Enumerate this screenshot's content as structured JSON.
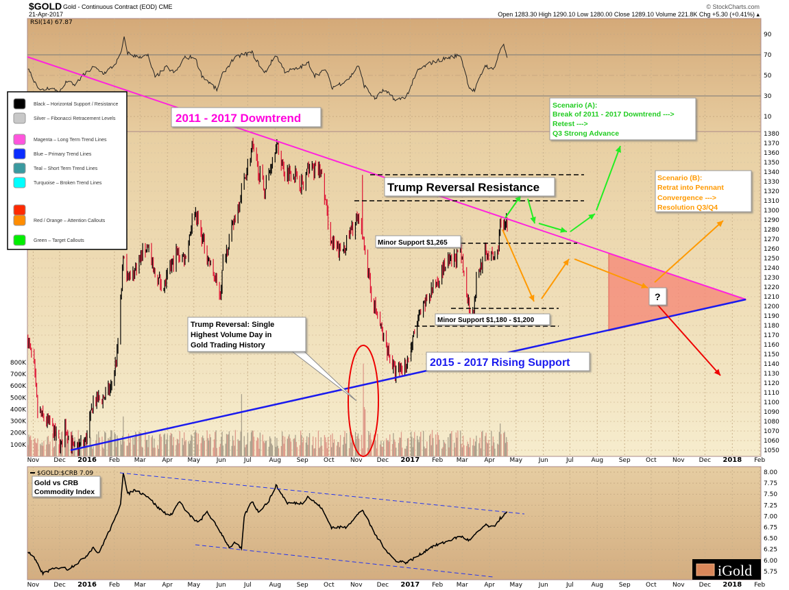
{
  "header": {
    "symbol": "$GOLD",
    "name": "Gold - Continuous Contract (EOD) CME",
    "date": "21-Apr-2017",
    "credit": "© StockCharts.com",
    "ohlc": "Open 1283.30 High 1290.10 Low 1280.00 Close 1289.10 Volume 221.8K Chg +5.30 (+0.41%) ▴"
  },
  "legend": [
    {
      "color": "#000000",
      "label": "Black – Horizontal Support / Resistance"
    },
    {
      "color": "#c8c8c8",
      "label": "Silver – Fibonacci Retracement Levels"
    },
    {
      "color": "#ff55dd",
      "label": "Magenta – Long Term Trend Lines"
    },
    {
      "color": "#0a2cff",
      "label": "Blue – Primary Trend Lines"
    },
    {
      "color": "#3a9aa0",
      "label": "Teal – Short Term Trend Lines"
    },
    {
      "color": "#00ffff",
      "label": "Turquoise – Broken Trend Lines"
    },
    {
      "color": "#ff2a00",
      "label": ""
    },
    {
      "color": "#ff8c00",
      "label": "Red / Orange – Attention Callouts"
    },
    {
      "color": "#00ee00",
      "label": "Green – Target Callouts"
    }
  ],
  "annotations": {
    "downtrend": "2011 - 2017 Downtrend",
    "resistance": "Trump Reversal Resistance",
    "support1": "Minor Support $1,265",
    "support2": "Minor Support $1,180 - $1,200",
    "rising": "2015 - 2017 Rising Support",
    "trump_callout": [
      "Trump Reversal: Single",
      "Highest Volume Day in",
      "Gold Trading History"
    ],
    "scenario_a": [
      "Scenario (A):",
      "Break of 2011 - 2017 Downtrend --->",
      "Retest --->",
      "Q3 Strong Advance"
    ],
    "scenario_b": [
      "Scenario (B):",
      "Retrat into Pennant",
      "Convergence --->",
      "Resolution Q3/Q4"
    ],
    "question": "?",
    "ratio_box": [
      "Gold vs CRB",
      "Commodity Index"
    ],
    "logo": "iGold"
  },
  "colors": {
    "magenta": "#ff22dd",
    "blue": "#1a1aee",
    "green": "#22ee22",
    "orange": "#ff9900",
    "red": "#ee0000",
    "up": "#000000",
    "down": "#dd1133"
  },
  "chart_data": [
    {
      "type": "line",
      "title": "RSI(14) 67.87",
      "ylim": [
        0,
        100
      ],
      "yticks": [
        "90",
        "70",
        "50",
        "30",
        "10"
      ],
      "ytick_values": [
        90,
        70,
        50,
        30,
        10
      ],
      "points": [
        [
          "2015-10-26",
          58
        ],
        [
          "2015-11-02",
          45
        ],
        [
          "2015-11-10",
          35
        ],
        [
          "2015-11-20",
          38
        ],
        [
          "2015-12-01",
          34
        ],
        [
          "2015-12-10",
          45
        ],
        [
          "2015-12-17",
          40
        ],
        [
          "2015-12-28",
          50
        ],
        [
          "2016-01-08",
          58
        ],
        [
          "2016-01-20",
          52
        ],
        [
          "2016-02-01",
          60
        ],
        [
          "2016-02-08",
          70
        ],
        [
          "2016-02-12",
          86
        ],
        [
          "2016-02-16",
          72
        ],
        [
          "2016-02-26",
          68
        ],
        [
          "2016-03-10",
          69
        ],
        [
          "2016-03-18",
          48
        ],
        [
          "2016-03-31",
          58
        ],
        [
          "2016-04-10",
          52
        ],
        [
          "2016-04-20",
          67
        ],
        [
          "2016-05-02",
          68
        ],
        [
          "2016-05-10",
          50
        ],
        [
          "2016-05-27",
          36
        ],
        [
          "2016-06-03",
          52
        ],
        [
          "2016-06-14",
          65
        ],
        [
          "2016-06-24",
          70
        ],
        [
          "2016-07-06",
          72
        ],
        [
          "2016-07-20",
          52
        ],
        [
          "2016-08-02",
          70
        ],
        [
          "2016-08-12",
          54
        ],
        [
          "2016-08-25",
          56
        ],
        [
          "2016-09-08",
          62
        ],
        [
          "2016-09-15",
          50
        ],
        [
          "2016-09-28",
          55
        ],
        [
          "2016-10-04",
          38
        ],
        [
          "2016-10-14",
          42
        ],
        [
          "2016-10-25",
          48
        ],
        [
          "2016-11-03",
          60
        ],
        [
          "2016-11-10",
          40
        ],
        [
          "2016-11-22",
          27
        ],
        [
          "2016-12-01",
          35
        ],
        [
          "2016-12-12",
          30
        ],
        [
          "2016-12-15",
          25
        ],
        [
          "2016-12-28",
          30
        ],
        [
          "2017-01-10",
          55
        ],
        [
          "2017-01-24",
          62
        ],
        [
          "2017-02-08",
          66
        ],
        [
          "2017-02-27",
          70
        ],
        [
          "2017-03-09",
          38
        ],
        [
          "2017-03-15",
          35
        ],
        [
          "2017-03-27",
          60
        ],
        [
          "2017-04-05",
          55
        ],
        [
          "2017-04-13",
          75
        ],
        [
          "2017-04-17",
          79
        ],
        [
          "2017-04-21",
          67.87
        ]
      ]
    },
    {
      "type": "candlestick",
      "title": "$GOLD Gold - Continuous Contract (EOD)",
      "ylim": [
        1040,
        1390
      ],
      "yticks": [
        "1380",
        "1370",
        "1360",
        "1350",
        "1340",
        "1330",
        "1320",
        "1310",
        "1300",
        "1290",
        "1280",
        "1270",
        "1260",
        "1250",
        "1240",
        "1230",
        "1220",
        "1210",
        "1200",
        "1190",
        "1180",
        "1170",
        "1160",
        "1150",
        "1140",
        "1130",
        "1120",
        "1110",
        "1100",
        "1090",
        "1080",
        "1070",
        "1060",
        "1050"
      ],
      "closes": [
        [
          "2015-10-26",
          1165
        ],
        [
          "2015-11-02",
          1135
        ],
        [
          "2015-11-06",
          1090
        ],
        [
          "2015-11-20",
          1077
        ],
        [
          "2015-12-03",
          1053
        ],
        [
          "2015-12-07",
          1075
        ],
        [
          "2015-12-17",
          1050
        ],
        [
          "2015-12-31",
          1061
        ],
        [
          "2016-01-08",
          1100
        ],
        [
          "2016-01-20",
          1105
        ],
        [
          "2016-01-28",
          1115
        ],
        [
          "2016-02-04",
          1150
        ],
        [
          "2016-02-11",
          1247
        ],
        [
          "2016-02-19",
          1228
        ],
        [
          "2016-03-10",
          1265
        ],
        [
          "2016-03-16",
          1235
        ],
        [
          "2016-03-28",
          1220
        ],
        [
          "2016-04-11",
          1255
        ],
        [
          "2016-04-21",
          1250
        ],
        [
          "2016-04-29",
          1290
        ],
        [
          "2016-05-02",
          1300
        ],
        [
          "2016-05-12",
          1265
        ],
        [
          "2016-05-31",
          1212
        ],
        [
          "2016-06-03",
          1245
        ],
        [
          "2016-06-16",
          1290
        ],
        [
          "2016-06-24",
          1320
        ],
        [
          "2016-07-06",
          1365
        ],
        [
          "2016-07-20",
          1320
        ],
        [
          "2016-08-02",
          1370
        ],
        [
          "2016-08-12",
          1340
        ],
        [
          "2016-08-22",
          1340
        ],
        [
          "2016-09-02",
          1325
        ],
        [
          "2016-09-08",
          1345
        ],
        [
          "2016-09-22",
          1340
        ],
        [
          "2016-10-04",
          1265
        ],
        [
          "2016-10-14",
          1255
        ],
        [
          "2016-10-20",
          1265
        ],
        [
          "2016-11-01",
          1290
        ],
        [
          "2016-11-08",
          1275
        ],
        [
          "2016-11-10",
          1265
        ],
        [
          "2016-11-17",
          1215
        ],
        [
          "2016-12-01",
          1170
        ],
        [
          "2016-12-15",
          1130
        ],
        [
          "2016-12-28",
          1140
        ],
        [
          "2017-01-10",
          1185
        ],
        [
          "2017-01-24",
          1215
        ],
        [
          "2017-02-08",
          1240
        ],
        [
          "2017-02-27",
          1255
        ],
        [
          "2017-03-09",
          1200
        ],
        [
          "2017-03-15",
          1200
        ],
        [
          "2017-03-17",
          1230
        ],
        [
          "2017-03-27",
          1255
        ],
        [
          "2017-04-05",
          1250
        ],
        [
          "2017-04-10",
          1255
        ],
        [
          "2017-04-13",
          1285
        ],
        [
          "2017-04-17",
          1290
        ],
        [
          "2017-04-21",
          1289.1
        ]
      ],
      "spike": {
        "date": "2016-11-08",
        "high": 1337
      },
      "volume_yticks": [
        "800K",
        "700K",
        "600K",
        "500K",
        "400K",
        "300K",
        "200K",
        "100K"
      ],
      "volume_ytick_values": [
        800000,
        700000,
        600000,
        500000,
        400000,
        300000,
        200000,
        100000
      ],
      "volume_base": 180000,
      "volume_highlights": [
        [
          "2016-11-09",
          790000
        ],
        [
          "2016-11-10",
          420000
        ],
        [
          "2016-11-11",
          400000
        ],
        [
          "2016-06-24",
          530000
        ],
        [
          "2016-02-11",
          340000
        ],
        [
          "2017-04-13",
          280000
        ]
      ]
    },
    {
      "type": "line",
      "title": "$GOLD:$CRB 7.09",
      "ylim": [
        5.6,
        8.1
      ],
      "yticks": [
        "8.00",
        "7.75",
        "7.50",
        "7.25",
        "7.00",
        "6.75",
        "6.50",
        "6.25",
        "6.00",
        "5.75"
      ],
      "ytick_values": [
        8,
        7.75,
        7.5,
        7.25,
        7,
        6.75,
        6.5,
        6.25,
        6,
        5.75
      ],
      "points": [
        [
          "2015-10-26",
          6.2
        ],
        [
          "2015-11-02",
          6.05
        ],
        [
          "2015-11-12",
          5.7
        ],
        [
          "2015-11-20",
          5.78
        ],
        [
          "2015-12-03",
          5.85
        ],
        [
          "2015-12-10",
          5.8
        ],
        [
          "2015-12-22",
          5.95
        ],
        [
          "2015-12-31",
          6.1
        ],
        [
          "2016-01-08",
          6.3
        ],
        [
          "2016-01-14",
          6.15
        ],
        [
          "2016-01-22",
          6.5
        ],
        [
          "2016-02-01",
          6.9
        ],
        [
          "2016-02-08",
          7.3
        ],
        [
          "2016-02-11",
          8.0
        ],
        [
          "2016-02-16",
          7.5
        ],
        [
          "2016-02-24",
          7.6
        ],
        [
          "2016-03-10",
          7.45
        ],
        [
          "2016-03-21",
          7.2
        ],
        [
          "2016-04-04",
          7.0
        ],
        [
          "2016-04-15",
          7.35
        ],
        [
          "2016-04-22",
          7.1
        ],
        [
          "2016-05-06",
          6.85
        ],
        [
          "2016-05-16",
          7.1
        ],
        [
          "2016-05-31",
          6.65
        ],
        [
          "2016-06-10",
          6.3
        ],
        [
          "2016-06-17",
          6.4
        ],
        [
          "2016-06-24",
          6.25
        ],
        [
          "2016-06-27",
          7.0
        ],
        [
          "2016-07-06",
          7.35
        ],
        [
          "2016-07-13",
          7.1
        ],
        [
          "2016-07-25",
          7.35
        ],
        [
          "2016-08-02",
          7.7
        ],
        [
          "2016-08-15",
          7.3
        ],
        [
          "2016-09-01",
          7.3
        ],
        [
          "2016-09-07",
          7.45
        ],
        [
          "2016-09-22",
          7.2
        ],
        [
          "2016-10-04",
          6.75
        ],
        [
          "2016-10-20",
          6.75
        ],
        [
          "2016-11-08",
          7.15
        ],
        [
          "2016-11-22",
          6.6
        ],
        [
          "2016-12-06",
          6.2
        ],
        [
          "2016-12-15",
          6.0
        ],
        [
          "2016-12-28",
          5.95
        ],
        [
          "2017-01-10",
          6.1
        ],
        [
          "2017-01-24",
          6.3
        ],
        [
          "2017-02-08",
          6.4
        ],
        [
          "2017-02-27",
          6.55
        ],
        [
          "2017-03-09",
          6.45
        ],
        [
          "2017-03-27",
          6.8
        ],
        [
          "2017-04-05",
          6.75
        ],
        [
          "2017-04-13",
          6.95
        ],
        [
          "2017-04-21",
          7.09
        ]
      ]
    }
  ],
  "xaxis": [
    {
      "label": "Nov",
      "date": "2015-11-01"
    },
    {
      "label": "Dec",
      "date": "2015-12-01"
    },
    {
      "label": "2016",
      "date": "2016-01-01",
      "bold": true
    },
    {
      "label": "Feb",
      "date": "2016-02-01"
    },
    {
      "label": "Mar",
      "date": "2016-03-01"
    },
    {
      "label": "Apr",
      "date": "2016-04-01"
    },
    {
      "label": "May",
      "date": "2016-05-01"
    },
    {
      "label": "Jun",
      "date": "2016-06-01"
    },
    {
      "label": "Jul",
      "date": "2016-07-01"
    },
    {
      "label": "Aug",
      "date": "2016-08-01"
    },
    {
      "label": "Sep",
      "date": "2016-09-01"
    },
    {
      "label": "Oct",
      "date": "2016-10-01"
    },
    {
      "label": "Nov",
      "date": "2016-11-01"
    },
    {
      "label": "Dec",
      "date": "2016-12-01"
    },
    {
      "label": "2017",
      "date": "2017-01-01",
      "bold": true
    },
    {
      "label": "Feb",
      "date": "2017-02-01"
    },
    {
      "label": "Mar",
      "date": "2017-03-01"
    },
    {
      "label": "Apr",
      "date": "2017-04-01"
    },
    {
      "label": "May",
      "date": "2017-05-01"
    },
    {
      "label": "Jun",
      "date": "2017-06-01"
    },
    {
      "label": "Jul",
      "date": "2017-07-01"
    },
    {
      "label": "Aug",
      "date": "2017-08-01"
    },
    {
      "label": "Sep",
      "date": "2017-09-01"
    },
    {
      "label": "Oct",
      "date": "2017-10-01"
    },
    {
      "label": "Nov",
      "date": "2017-11-01"
    },
    {
      "label": "Dec",
      "date": "2017-12-01"
    },
    {
      "label": "2018",
      "date": "2018-01-01",
      "bold": true
    },
    {
      "label": "Feb",
      "date": "2018-02-01"
    }
  ]
}
